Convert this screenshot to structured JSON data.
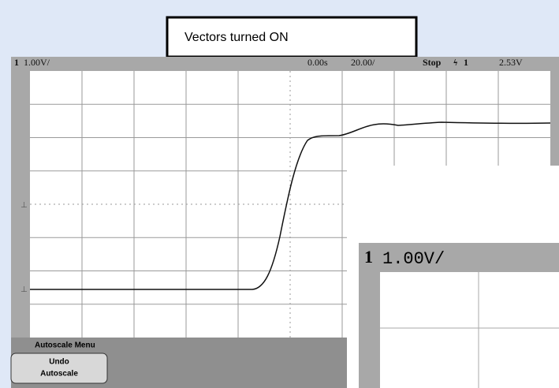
{
  "caption": "Vectors turned ON",
  "status_bar": {
    "channel": "1",
    "scale": "1.00V/",
    "time_ref": "0.00s",
    "timebase": "20.00/",
    "run_state": "Stop",
    "trigger_source": "1",
    "trigger_level": "2.53V"
  },
  "softkey_menu": {
    "title": "Autoscale Menu",
    "button_lines": [
      "Undo",
      "Autoscale"
    ]
  },
  "inset": {
    "channel": "1",
    "scale": "1.00V/"
  }
}
